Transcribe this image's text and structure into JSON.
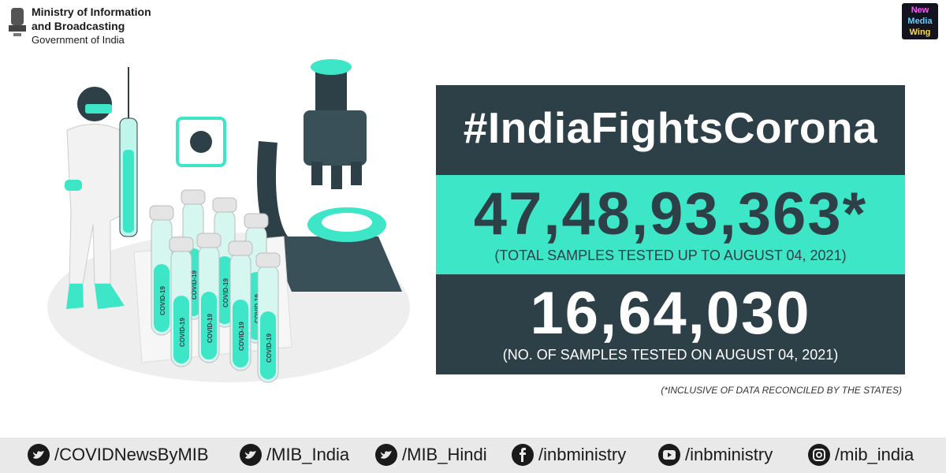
{
  "header": {
    "title_line1": "Ministry of Information",
    "title_line2": "and Broadcasting",
    "subtitle": "Government of India"
  },
  "logo": {
    "line1": "New",
    "line2": "Media",
    "line3": "Wing"
  },
  "illustration": {
    "tube_label": "COVID-19"
  },
  "panel": {
    "hashtag": "#IndiaFightsCorona",
    "total_tests": "47,48,93,363*",
    "total_caption": "(TOTAL SAMPLES TESTED UP TO AUGUST 04, 2021)",
    "daily_tests": "16,64,030",
    "daily_caption": "(NO. OF SAMPLES TESTED ON AUGUST 04, 2021)"
  },
  "footnote": "(*INCLUSIVE OF DATA RECONCILED BY THE STATES)",
  "social": [
    "/COVIDNewsByMIB",
    "/MIB_India",
    "/MIB_Hindi",
    "/inbministry",
    "/inbministry",
    "/mib_india"
  ]
}
